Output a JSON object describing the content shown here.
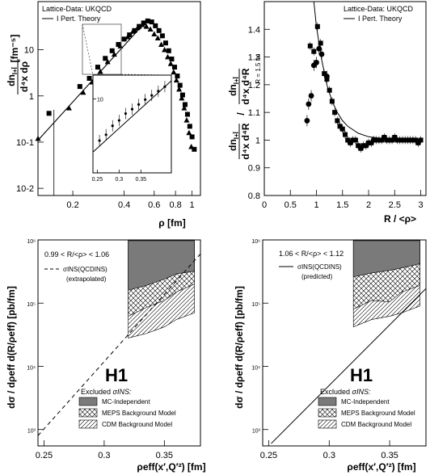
{
  "chart_data": [
    {
      "id": "tl",
      "type": "scatter",
      "xscale": "log",
      "yscale": "log",
      "xlim": [
        0.125,
        1.12
      ],
      "ylim": [
        0.007,
        110
      ],
      "xticks": [
        0.2,
        0.4,
        0.6,
        0.8,
        1
      ],
      "yticks": [
        0.01,
        0.1,
        1,
        10
      ],
      "ytick_labels": [
        "10-2",
        "10-1",
        "1",
        "10"
      ],
      "xlabel": "ρ  [fm]",
      "ylabel_num": "dn",
      "ylabel_num_sub": "I+Ī",
      "ylabel_den": "d⁴x dρ",
      "ylabel_unit": "[fm⁻⁵]",
      "legend": {
        "title": "Lattice-Data: UKQCD",
        "line": "I Pert. Theory"
      },
      "theory_line": [
        [
          0.125,
          0.11
        ],
        [
          0.55,
          45
        ]
      ],
      "squares": [
        [
          0.145,
          0.42
        ],
        [
          0.22,
          1.6
        ],
        [
          0.25,
          2.4
        ],
        [
          0.28,
          4.2
        ],
        [
          0.31,
          6.5
        ],
        [
          0.34,
          9.5
        ],
        [
          0.37,
          13
        ],
        [
          0.4,
          17
        ],
        [
          0.43,
          21
        ],
        [
          0.46,
          26
        ],
        [
          0.49,
          32
        ],
        [
          0.52,
          38
        ],
        [
          0.55,
          42
        ],
        [
          0.58,
          40
        ],
        [
          0.61,
          33
        ],
        [
          0.64,
          26
        ],
        [
          0.67,
          20
        ],
        [
          0.7,
          14
        ],
        [
          0.73,
          9.5
        ],
        [
          0.76,
          6.3
        ],
        [
          0.79,
          4.2
        ],
        [
          0.82,
          2.7
        ],
        [
          0.85,
          1.7
        ],
        [
          0.88,
          1.05
        ],
        [
          0.91,
          0.65
        ],
        [
          0.94,
          0.4
        ],
        [
          0.97,
          0.22
        ],
        [
          1.0,
          0.13
        ],
        [
          1.03,
          0.07
        ]
      ],
      "triangles": [
        [
          0.125,
          0.12
        ],
        [
          0.19,
          0.55
        ],
        [
          0.23,
          1.2
        ],
        [
          0.26,
          2.0
        ],
        [
          0.29,
          3.4
        ],
        [
          0.32,
          5.5
        ],
        [
          0.35,
          8.0
        ],
        [
          0.38,
          12
        ],
        [
          0.42,
          19
        ],
        [
          0.45,
          25
        ],
        [
          0.48,
          30
        ],
        [
          0.51,
          35
        ],
        [
          0.54,
          32
        ],
        [
          0.57,
          28
        ],
        [
          0.6,
          22
        ],
        [
          0.63,
          18
        ],
        [
          0.66,
          13
        ],
        [
          0.69,
          10
        ],
        [
          0.72,
          7
        ],
        [
          0.75,
          5
        ],
        [
          0.78,
          3.3
        ],
        [
          0.81,
          2.2
        ],
        [
          0.84,
          1.4
        ],
        [
          0.87,
          0.9
        ],
        [
          0.9,
          0.55
        ],
        [
          0.93,
          0.3
        ],
        [
          0.96,
          0.16
        ],
        [
          0.99,
          0.08
        ]
      ],
      "inset": {
        "xlim": [
          0.24,
          0.42
        ],
        "ylim": [
          0.2,
          35
        ],
        "xticks": [
          0.25,
          0.3,
          0.35
        ],
        "yticks": [
          10
        ],
        "ytick_labels": [
          "10"
        ],
        "line": [
          [
            0.24,
            0.6
          ],
          [
            0.42,
            26
          ]
        ],
        "points": [
          [
            0.255,
            1.1
          ],
          [
            0.27,
            1.5
          ],
          [
            0.285,
            2.4
          ],
          [
            0.3,
            3.2
          ],
          [
            0.315,
            4.6
          ],
          [
            0.33,
            5.8
          ],
          [
            0.345,
            7.4
          ],
          [
            0.36,
            9.6
          ],
          [
            0.375,
            12
          ],
          [
            0.39,
            15
          ],
          [
            0.405,
            19
          ]
        ]
      }
    },
    {
      "id": "tr",
      "type": "scatter",
      "xlim": [
        0,
        3.1
      ],
      "ylim": [
        0.8,
        1.5
      ],
      "xticks": [
        0,
        0.5,
        1,
        1.5,
        2,
        2.5,
        3
      ],
      "xtick_labels": [
        "0",
        "0.5",
        "1",
        "1.5",
        "2",
        "2.5",
        "3"
      ],
      "yticks": [
        0.8,
        0.9,
        1,
        1.1,
        1.2,
        1.3,
        1.4
      ],
      "ytick_labels": [
        "0.8",
        "0.9",
        "1",
        "1.1",
        "1.2",
        "1.3",
        "1.4"
      ],
      "xlabel": "R / <ρ>",
      "ylabel_num": "dn",
      "ylabel_num_sub": "I+Ī",
      "ylabel_den": "d⁴x d⁴R",
      "ylabel_num2": "dn",
      "ylabel_num2_sub": "I+Ī",
      "ylabel_den2": "d⁴x d⁴R",
      "ylabel_sub": "R = 1.5 fm",
      "legend": {
        "title": "Lattice-Data: UKQCD",
        "line": "I Pert. Theory"
      },
      "theory_curve": [
        [
          0.95,
          1.5
        ],
        [
          1.0,
          1.41
        ],
        [
          1.1,
          1.29
        ],
        [
          1.2,
          1.2
        ],
        [
          1.3,
          1.14
        ],
        [
          1.4,
          1.1
        ],
        [
          1.5,
          1.07
        ],
        [
          1.6,
          1.05
        ],
        [
          1.8,
          1.025
        ],
        [
          2.0,
          1.012
        ],
        [
          2.5,
          1.0
        ],
        [
          3.0,
          1.0
        ]
      ],
      "circles": [
        [
          0.82,
          1.07
        ],
        [
          0.85,
          1.13
        ],
        [
          0.9,
          1.16
        ],
        [
          0.95,
          1.27
        ],
        [
          1.0,
          1.28
        ],
        [
          1.05,
          1.33
        ],
        [
          1.1,
          1.31
        ],
        [
          1.2,
          1.23
        ]
      ],
      "squares": [
        [
          0.88,
          1.34
        ],
        [
          0.95,
          1.32
        ],
        [
          1.02,
          1.41
        ],
        [
          1.08,
          1.35
        ],
        [
          1.15,
          1.24
        ],
        [
          1.2,
          1.22
        ],
        [
          1.25,
          1.18
        ],
        [
          1.3,
          1.14
        ],
        [
          1.35,
          1.1
        ],
        [
          1.4,
          1.07
        ],
        [
          1.45,
          1.05
        ],
        [
          1.5,
          1.04
        ],
        [
          1.55,
          1.02
        ],
        [
          1.6,
          1.0
        ],
        [
          1.65,
          0.99
        ],
        [
          1.7,
          1.0
        ],
        [
          1.75,
          1.0
        ],
        [
          1.8,
          0.98
        ],
        [
          1.85,
          0.97
        ],
        [
          1.9,
          0.98
        ],
        [
          1.95,
          0.98
        ],
        [
          2.0,
          0.99
        ],
        [
          2.05,
          0.99
        ],
        [
          2.1,
          1.0
        ],
        [
          2.15,
          1.0
        ],
        [
          2.2,
          1.0
        ],
        [
          2.25,
          1.0
        ],
        [
          2.3,
          1.01
        ],
        [
          2.35,
          1.0
        ],
        [
          2.4,
          1.0
        ],
        [
          2.45,
          1.0
        ],
        [
          2.5,
          1.01
        ],
        [
          2.55,
          1.0
        ],
        [
          2.6,
          1.0
        ],
        [
          2.65,
          1.0
        ],
        [
          2.7,
          1.0
        ],
        [
          2.75,
          1.0
        ],
        [
          2.8,
          1.0
        ],
        [
          2.85,
          1.0
        ],
        [
          2.9,
          1.0
        ],
        [
          2.95,
          0.99
        ],
        [
          3.0,
          1.0
        ]
      ]
    },
    {
      "id": "bl",
      "type": "area",
      "xlim": [
        0.245,
        0.38
      ],
      "ylim": [
        550,
        1000000
      ],
      "yscale": "log",
      "xticks": [
        0.25,
        0.3,
        0.35
      ],
      "xtick_labels": [
        "0.25",
        "0.3",
        "0.35"
      ],
      "yticks": [
        1000,
        10000,
        100000,
        1000000
      ],
      "ytick_labels": [
        "10³",
        "10⁴",
        "10⁵",
        "10⁶"
      ],
      "xlabel": "ρeff(x′,Q′²) [fm]",
      "ylabel": "dσ / dρeff d(R/ρeff)  [pb/fm]",
      "h1": "H1",
      "range_label": "0.99 < R/<ρ> < 1.06",
      "curve_label": "σINS(QCDINS)",
      "curve_note": "(extrapolated)",
      "excluded_title": "Excluded",
      "excluded_sigma": "σINS:",
      "excluded_items": [
        "MC-Independent",
        "MEPS Background Model",
        "CDM Background Model"
      ],
      "theory": [
        [
          0.245,
          800
        ],
        [
          0.38,
          600000
        ]
      ],
      "band_mc": {
        "lower": [
          [
            0.32,
            1100000
          ],
          [
            0.34,
            1100000
          ],
          [
            0.36,
            1100000
          ],
          [
            0.375,
            1100000
          ]
        ],
        "upper": [
          [
            0.32,
            1100000
          ],
          [
            0.375,
            1100000
          ]
        ],
        "low": [
          [
            0.32,
            160000
          ],
          [
            0.335,
            190000
          ],
          [
            0.35,
            240000
          ],
          [
            0.36,
            290000
          ],
          [
            0.375,
            320000
          ]
        ]
      },
      "band_meps_low": [
        [
          0.32,
          62000
        ],
        [
          0.335,
          85000
        ],
        [
          0.35,
          110000
        ],
        [
          0.36,
          150000
        ],
        [
          0.375,
          200000
        ]
      ],
      "band_cdm_low": [
        [
          0.32,
          28000
        ],
        [
          0.335,
          33000
        ],
        [
          0.35,
          42000
        ],
        [
          0.36,
          55000
        ],
        [
          0.375,
          70000
        ]
      ]
    },
    {
      "id": "br",
      "type": "area",
      "xlim": [
        0.245,
        0.38
      ],
      "ylim": [
        550,
        1000000
      ],
      "yscale": "log",
      "xticks": [
        0.25,
        0.3,
        0.35
      ],
      "xtick_labels": [
        "0.25",
        "0.3",
        "0.35"
      ],
      "yticks": [
        1000,
        10000,
        100000,
        1000000
      ],
      "ytick_labels": [
        "10³",
        "10⁴",
        "10⁵",
        "10⁶"
      ],
      "xlabel": "ρeff(x′,Q′²) [fm]",
      "ylabel": "dσ / dρeff d(R/ρeff)  [pb/fm]",
      "h1": "H1",
      "range_label": "1.06 < R/<ρ> < 1.12",
      "curve_label": "σINS(QCDINS)",
      "curve_note": "(predicted)",
      "excluded_title": "Excluded",
      "excluded_sigma": "σINS:",
      "excluded_items": [
        "MC-Independent",
        "MEPS Background Model",
        "CDM Background Model"
      ],
      "theory": [
        [
          0.252,
          600
        ],
        [
          0.38,
          170000
        ]
      ],
      "band_mc_low": [
        [
          0.32,
          260000
        ],
        [
          0.335,
          300000
        ],
        [
          0.35,
          330000
        ],
        [
          0.36,
          360000
        ],
        [
          0.375,
          420000
        ]
      ],
      "band_meps_low": [
        [
          0.32,
          80000
        ],
        [
          0.335,
          110000
        ],
        [
          0.35,
          105000
        ],
        [
          0.36,
          150000
        ],
        [
          0.375,
          190000
        ]
      ],
      "band_cdm_low": [
        [
          0.32,
          42000
        ],
        [
          0.335,
          55000
        ],
        [
          0.35,
          62000
        ],
        [
          0.36,
          70000
        ],
        [
          0.375,
          90000
        ]
      ]
    }
  ]
}
